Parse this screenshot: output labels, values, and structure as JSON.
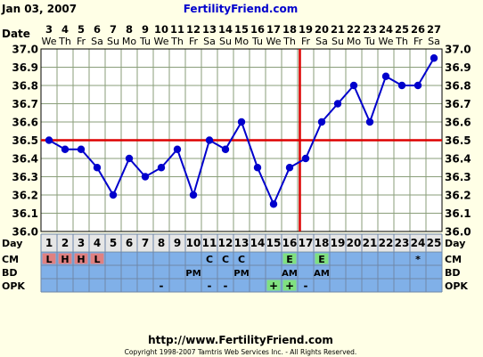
{
  "header": {
    "date_label": "Jan 03, 2007",
    "brand": "FertilityFriend.com"
  },
  "footer": {
    "url": "http://www.FertilityFriend.com",
    "copyright": "Copyright 1998-2007 Tamtris Web Services Inc. - All Rights Reserved."
  },
  "chart_data": {
    "type": "line",
    "title": "",
    "xlabel": "Day",
    "ylabel": "",
    "row_labels": {
      "date": "Date",
      "day": "Day",
      "cm": "CM",
      "bd": "BD",
      "opk": "OPK"
    },
    "ylim": [
      36.0,
      37.0
    ],
    "yticks": [
      "36.0",
      "36.1",
      "36.2",
      "36.3",
      "36.4",
      "36.5",
      "36.6",
      "36.7",
      "36.8",
      "36.9",
      "37.0"
    ],
    "days": [
      "1",
      "2",
      "3",
      "4",
      "5",
      "6",
      "7",
      "8",
      "9",
      "10",
      "11",
      "12",
      "13",
      "14",
      "15",
      "16",
      "17",
      "18",
      "19",
      "20",
      "21",
      "22",
      "23",
      "24",
      "25"
    ],
    "dates": [
      "3",
      "4",
      "5",
      "6",
      "7",
      "8",
      "9",
      "10",
      "11",
      "12",
      "13",
      "14",
      "15",
      "16",
      "17",
      "18",
      "19",
      "20",
      "21",
      "22",
      "23",
      "24",
      "25",
      "26",
      "27"
    ],
    "weekdays": [
      "We",
      "Th",
      "Fr",
      "Sa",
      "Su",
      "Mo",
      "Tu",
      "We",
      "Th",
      "Fr",
      "Sa",
      "Su",
      "Mo",
      "Tu",
      "We",
      "Th",
      "Fr",
      "Sa",
      "Su",
      "Mo",
      "Tu",
      "We",
      "Th",
      "Fr",
      "Sa"
    ],
    "series": [
      {
        "values": [
          36.5,
          36.45,
          36.45,
          36.35,
          36.2,
          36.4,
          36.3,
          36.35,
          36.45,
          36.2,
          36.5,
          36.45,
          36.6,
          36.35,
          36.15,
          36.35,
          36.4,
          36.6,
          36.7,
          36.8,
          36.6,
          36.85,
          36.8,
          36.8,
          36.95
        ]
      }
    ],
    "coverline": 36.5,
    "ovulation_day": 17,
    "cm": [
      "L",
      "H",
      "H",
      "L",
      "",
      "",
      "",
      "",
      "",
      "",
      "C",
      "C",
      "C",
      "",
      "",
      "E",
      "",
      "E",
      "",
      "",
      "",
      "",
      "",
      "*",
      ""
    ],
    "bd": [
      "",
      "",
      "",
      "",
      "",
      "",
      "",
      "",
      "",
      "PM",
      "",
      "",
      "PM",
      "",
      "",
      "AM",
      "",
      "AM",
      "",
      "",
      "",
      "",
      "",
      "",
      ""
    ],
    "opk": [
      "",
      "",
      "",
      "",
      "",
      "",
      "",
      "-",
      "",
      "",
      "-",
      "-",
      "",
      "",
      "+",
      "+",
      "-",
      "",
      "",
      "",
      "",
      "",
      "",
      "",
      ""
    ],
    "colors": {
      "line": "#0000CC",
      "coverline": "#DD0000",
      "grid": "#8A9E7A",
      "plot_bg": "#FFFFFF",
      "day_row_bg": "#E6E6E6",
      "rows_bg": "#80B0E8",
      "cm_menses": "#E08080",
      "cm_egg": "#80E080",
      "opk_pos": "#80E080",
      "brand": "#0000CC"
    }
  }
}
